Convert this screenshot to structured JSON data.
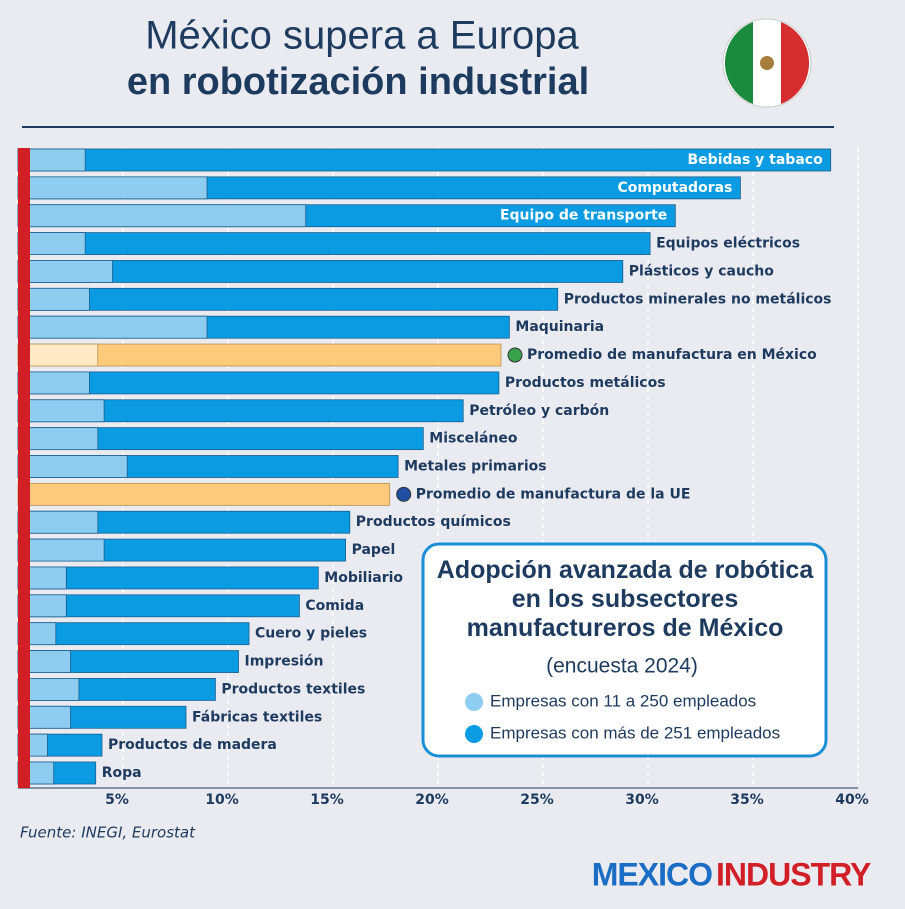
{
  "chart_data": {
    "type": "bar",
    "orientation": "horizontal",
    "title": "México supera a Europa",
    "subtitle": "en robotización industrial",
    "legend_title": "Adopción avanzada de robótica en los subsectores manufactureros de México",
    "legend_subtitle": "(encuesta 2024)",
    "source": "Fuente: INEGI, Eurostat",
    "brand": [
      "MEXICO",
      "INDUSTRY"
    ],
    "categories": [
      "Bebidas y tabaco",
      "Computadoras",
      "Equipo de transporte",
      "Equipos eléctricos",
      "Plásticos y caucho",
      "Productos minerales no metálicos",
      "Maquinaria",
      "Promedio de manufactura en México",
      "Productos metálicos",
      "Petróleo y carbón",
      "Misceláneo",
      "Metales primarios",
      "Promedio de manufactura de la UE",
      "Productos químicos",
      "Papel",
      "Mobiliario",
      "Comida",
      "Cuero y pieles",
      "Impresión",
      "Productos textiles",
      "Fábricas textiles",
      "Productos de madera",
      "Ropa"
    ],
    "series": [
      {
        "name": "Empresas con más de 251 empleados",
        "color": "#0a9be3",
        "highlight_color": "#fdc97a",
        "values": [
          38.7,
          34.4,
          31.3,
          30.1,
          28.8,
          25.7,
          23.4,
          23.0,
          22.9,
          21.2,
          19.3,
          18.1,
          17.7,
          15.8,
          15.6,
          14.3,
          13.4,
          11.0,
          10.5,
          9.4,
          8.0,
          4.0,
          3.7
        ]
      },
      {
        "name": "Empresas con 11 a 250 empleados",
        "color": "#8ecdf0",
        "highlight_color": "#fde9c4",
        "values": [
          3.2,
          9.0,
          13.7,
          3.2,
          4.5,
          3.4,
          9.0,
          3.8,
          3.4,
          4.1,
          3.8,
          5.2,
          null,
          3.8,
          4.1,
          2.3,
          2.3,
          1.8,
          2.5,
          2.9,
          2.5,
          1.4,
          1.7
        ]
      }
    ],
    "highlight": [
      7,
      12
    ],
    "xlim": [
      0,
      40
    ],
    "xticks": [
      {
        "value": 5,
        "label": "5%"
      },
      {
        "value": 10,
        "label": "10%"
      },
      {
        "value": 15,
        "label": "15%"
      },
      {
        "value": 20,
        "label": "20%"
      },
      {
        "value": 25,
        "label": "25%"
      },
      {
        "value": 30,
        "label": "30%"
      },
      {
        "value": 35,
        "label": "35%"
      },
      {
        "value": 40,
        "label": "40%"
      }
    ],
    "grid": true
  }
}
